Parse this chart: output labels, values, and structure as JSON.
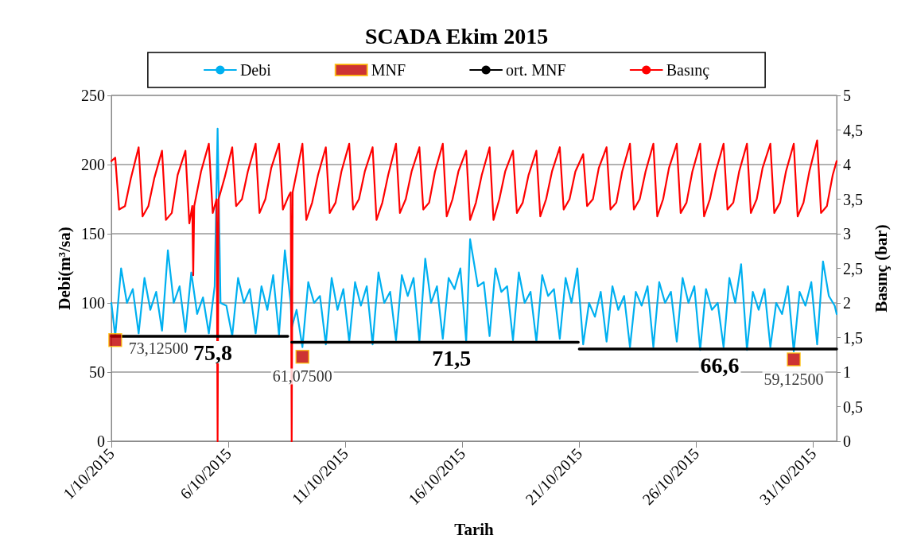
{
  "chart_data": {
    "type": "line",
    "title": "SCADA Ekim 2015",
    "xlabel": "Tarih",
    "ylabel": "Debi(m³/sa)",
    "y2label": "Basınç (bar)",
    "xlim": [
      "2015-10-01",
      "2015-11-01"
    ],
    "xticks": [
      {
        "value": "2015-10-01",
        "label": "1/10/2015"
      },
      {
        "value": "2015-10-06",
        "label": "6/10/2015"
      },
      {
        "value": "2015-10-11",
        "label": "11/10/2015"
      },
      {
        "value": "2015-10-16",
        "label": "16/10/2015"
      },
      {
        "value": "2015-10-21",
        "label": "21/10/2015"
      },
      {
        "value": "2015-10-26",
        "label": "26/10/2015"
      },
      {
        "value": "2015-10-31",
        "label": "31/10/2015"
      }
    ],
    "ylim": [
      0,
      250
    ],
    "yticks": [
      0,
      50,
      100,
      150,
      200,
      250
    ],
    "y2lim": [
      0,
      5
    ],
    "y2ticks": [
      0,
      {
        "value": 0.5,
        "label": "0,5"
      },
      1,
      {
        "value": 1.5,
        "label": "1,5"
      },
      2,
      {
        "value": 2.5,
        "label": "2,5"
      },
      3,
      {
        "value": 3.5,
        "label": "3,5"
      },
      4,
      {
        "value": 4.5,
        "label": "4,5"
      },
      5
    ],
    "grid": "y",
    "legend": "top",
    "marker": "none",
    "line_style": "solid",
    "series": [
      {
        "name": "Debi",
        "color": "#00b0f0",
        "x": [
          "2015-10-01T00:00",
          "2015-10-01T04:00",
          "2015-10-01T10:00",
          "2015-10-01T16:00",
          "2015-10-01T22:00",
          "2015-10-02T04:00",
          "2015-10-02T10:00",
          "2015-10-02T16:00",
          "2015-10-02T22:00",
          "2015-10-03T04:00",
          "2015-10-03T10:00",
          "2015-10-03T16:00",
          "2015-10-03T22:00",
          "2015-10-04T04:00",
          "2015-10-04T10:00",
          "2015-10-04T16:00",
          "2015-10-04T22:00",
          "2015-10-05T04:00",
          "2015-10-05T10:00",
          "2015-10-05T13:00",
          "2015-10-05T16:00",
          "2015-10-05T22:00",
          "2015-10-06T04:00",
          "2015-10-06T10:00",
          "2015-10-06T16:00",
          "2015-10-06T22:00",
          "2015-10-07T04:00",
          "2015-10-07T10:00",
          "2015-10-07T16:00",
          "2015-10-07T22:00",
          "2015-10-08T04:00",
          "2015-10-08T10:00",
          "2015-10-08T16:00",
          "2015-10-08T17:00",
          "2015-10-08T22:00",
          "2015-10-09T04:00",
          "2015-10-09T10:00",
          "2015-10-09T16:00",
          "2015-10-09T22:00",
          "2015-10-10T04:00",
          "2015-10-10T10:00",
          "2015-10-10T16:00",
          "2015-10-10T22:00",
          "2015-10-11T04:00",
          "2015-10-11T10:00",
          "2015-10-11T16:00",
          "2015-10-11T22:00",
          "2015-10-12T04:00",
          "2015-10-12T10:00",
          "2015-10-12T16:00",
          "2015-10-12T22:00",
          "2015-10-13T04:00",
          "2015-10-13T10:00",
          "2015-10-13T16:00",
          "2015-10-13T22:00",
          "2015-10-14T04:00",
          "2015-10-14T10:00",
          "2015-10-14T16:00",
          "2015-10-14T22:00",
          "2015-10-15T04:00",
          "2015-10-15T10:00",
          "2015-10-15T16:00",
          "2015-10-15T22:00",
          "2015-10-16T04:00",
          "2015-10-16T08:00",
          "2015-10-16T16:00",
          "2015-10-16T22:00",
          "2015-10-17T04:00",
          "2015-10-17T10:00",
          "2015-10-17T16:00",
          "2015-10-17T22:00",
          "2015-10-18T04:00",
          "2015-10-18T10:00",
          "2015-10-18T16:00",
          "2015-10-18T22:00",
          "2015-10-19T04:00",
          "2015-10-19T10:00",
          "2015-10-19T16:00",
          "2015-10-19T22:00",
          "2015-10-20T04:00",
          "2015-10-20T10:00",
          "2015-10-20T16:00",
          "2015-10-20T22:00",
          "2015-10-21T04:00",
          "2015-10-21T10:00",
          "2015-10-21T16:00",
          "2015-10-21T22:00",
          "2015-10-22T04:00",
          "2015-10-22T10:00",
          "2015-10-22T16:00",
          "2015-10-22T22:00",
          "2015-10-23T04:00",
          "2015-10-23T10:00",
          "2015-10-23T16:00",
          "2015-10-23T22:00",
          "2015-10-24T04:00",
          "2015-10-24T10:00",
          "2015-10-24T16:00",
          "2015-10-24T22:00",
          "2015-10-25T04:00",
          "2015-10-25T10:00",
          "2015-10-25T16:00",
          "2015-10-25T22:00",
          "2015-10-26T04:00",
          "2015-10-26T10:00",
          "2015-10-26T16:00",
          "2015-10-26T22:00",
          "2015-10-27T04:00",
          "2015-10-27T10:00",
          "2015-10-27T16:00",
          "2015-10-27T22:00",
          "2015-10-28T04:00",
          "2015-10-28T10:00",
          "2015-10-28T16:00",
          "2015-10-28T22:00",
          "2015-10-29T04:00",
          "2015-10-29T10:00",
          "2015-10-29T16:00",
          "2015-10-29T22:00",
          "2015-10-30T04:00",
          "2015-10-30T10:00",
          "2015-10-30T16:00",
          "2015-10-30T22:00",
          "2015-10-31T04:00",
          "2015-10-31T10:00",
          "2015-10-31T16:00",
          "2015-10-31T22:00",
          "2015-11-01T00:00"
        ],
        "values": [
          100,
          76,
          125,
          100,
          110,
          78,
          118,
          95,
          108,
          80,
          138,
          100,
          112,
          79,
          122,
          92,
          104,
          78,
          112,
          226,
          100,
          98,
          76,
          118,
          100,
          110,
          78,
          112,
          95,
          120,
          77,
          138,
          100,
          82,
          95,
          68,
          115,
          100,
          105,
          70,
          118,
          95,
          110,
          72,
          115,
          98,
          112,
          70,
          122,
          100,
          108,
          73,
          120,
          105,
          118,
          72,
          132,
          100,
          112,
          74,
          118,
          110,
          125,
          72,
          146,
          112,
          115,
          76,
          125,
          108,
          112,
          73,
          122,
          100,
          108,
          72,
          120,
          105,
          110,
          74,
          118,
          100,
          125,
          70,
          100,
          90,
          108,
          72,
          112,
          95,
          105,
          68,
          108,
          98,
          112,
          68,
          115,
          100,
          108,
          72,
          118,
          100,
          112,
          66,
          110,
          95,
          100,
          68,
          118,
          100,
          128,
          66,
          108,
          95,
          110,
          68,
          100,
          92,
          112,
          65,
          108,
          98,
          115,
          70,
          130,
          105,
          98,
          92
        ]
      },
      {
        "name": "MNF",
        "type": "scatter",
        "marker": "square",
        "color": "#c00000",
        "x": [
          "2015-10-01T04:00",
          "2015-10-09T04:00",
          "2015-10-30T04:00"
        ],
        "values": [
          73.125,
          61.075,
          59.125
        ],
        "value_labels": [
          "73,12500",
          "61,07500",
          "59,12500"
        ]
      },
      {
        "name": "ort. MNF",
        "type": "line",
        "color": "#000000",
        "x": [
          "2015-10-01T00:00",
          "2015-10-05T08:00",
          "2015-10-08T13:00",
          "2015-10-08T15:00",
          "2015-10-08T17:00",
          "2015-10-15T13:00",
          "2015-10-20T23:00",
          "2015-10-20T23:30",
          "2015-10-21T00:00",
          "2015-10-27T00:00",
          "2015-11-01T00:00"
        ],
        "values": [
          75.8,
          75.8,
          75.8,
          null,
          71.5,
          71.5,
          71.5,
          null,
          66.6,
          66.6,
          66.6
        ],
        "value_labels": [
          null,
          "75,8",
          null,
          null,
          null,
          "71,5",
          null,
          null,
          null,
          "66,6",
          null
        ]
      },
      {
        "name": "Basınç",
        "axis": "y2",
        "color": "#ff0000",
        "x": [
          "2015-10-01T00:00",
          "2015-10-01T04:00",
          "2015-10-01T08:00",
          "2015-10-01T14:00",
          "2015-10-01T20:00",
          "2015-10-02T04:00",
          "2015-10-02T08:00",
          "2015-10-02T14:00",
          "2015-10-02T20:00",
          "2015-10-03T04:00",
          "2015-10-03T08:00",
          "2015-10-03T14:00",
          "2015-10-03T20:00",
          "2015-10-04T04:00",
          "2015-10-04T08:00",
          "2015-10-04T11:00",
          "2015-10-04T12:00",
          "2015-10-04T13:00",
          "2015-10-04T20:00",
          "2015-10-05T04:00",
          "2015-10-05T08:00",
          "2015-10-05T12:00",
          "2015-10-05T13:00",
          "2015-10-05T14:00",
          "2015-10-05T20:00",
          "2015-10-06T04:00",
          "2015-10-06T08:00",
          "2015-10-06T14:00",
          "2015-10-06T20:00",
          "2015-10-07T04:00",
          "2015-10-07T08:00",
          "2015-10-07T14:00",
          "2015-10-07T20:00",
          "2015-10-08T04:00",
          "2015-10-08T08:00",
          "2015-10-08T14:00",
          "2015-10-08T16:00",
          "2015-10-08T17:00",
          "2015-10-08T18:00",
          "2015-10-09T04:00",
          "2015-10-09T08:00",
          "2015-10-09T14:00",
          "2015-10-09T20:00",
          "2015-10-10T04:00",
          "2015-10-10T08:00",
          "2015-10-10T14:00",
          "2015-10-10T20:00",
          "2015-10-11T04:00",
          "2015-10-11T08:00",
          "2015-10-11T14:00",
          "2015-10-11T20:00",
          "2015-10-12T04:00",
          "2015-10-12T08:00",
          "2015-10-12T14:00",
          "2015-10-12T20:00",
          "2015-10-13T04:00",
          "2015-10-13T08:00",
          "2015-10-13T14:00",
          "2015-10-13T20:00",
          "2015-10-14T04:00",
          "2015-10-14T08:00",
          "2015-10-14T14:00",
          "2015-10-14T20:00",
          "2015-10-15T04:00",
          "2015-10-15T08:00",
          "2015-10-15T14:00",
          "2015-10-15T20:00",
          "2015-10-16T04:00",
          "2015-10-16T08:00",
          "2015-10-16T14:00",
          "2015-10-16T20:00",
          "2015-10-17T04:00",
          "2015-10-17T08:00",
          "2015-10-17T14:00",
          "2015-10-17T20:00",
          "2015-10-18T04:00",
          "2015-10-18T08:00",
          "2015-10-18T14:00",
          "2015-10-18T20:00",
          "2015-10-19T04:00",
          "2015-10-19T08:00",
          "2015-10-19T14:00",
          "2015-10-19T20:00",
          "2015-10-20T04:00",
          "2015-10-20T08:00",
          "2015-10-20T14:00",
          "2015-10-20T20:00",
          "2015-10-21T04:00",
          "2015-10-21T08:00",
          "2015-10-21T14:00",
          "2015-10-21T20:00",
          "2015-10-22T04:00",
          "2015-10-22T08:00",
          "2015-10-22T14:00",
          "2015-10-22T20:00",
          "2015-10-23T04:00",
          "2015-10-23T08:00",
          "2015-10-23T14:00",
          "2015-10-23T20:00",
          "2015-10-24T04:00",
          "2015-10-24T08:00",
          "2015-10-24T14:00",
          "2015-10-24T20:00",
          "2015-10-25T04:00",
          "2015-10-25T08:00",
          "2015-10-25T14:00",
          "2015-10-25T20:00",
          "2015-10-26T04:00",
          "2015-10-26T08:00",
          "2015-10-26T14:00",
          "2015-10-26T20:00",
          "2015-10-27T04:00",
          "2015-10-27T08:00",
          "2015-10-27T14:00",
          "2015-10-27T20:00",
          "2015-10-28T04:00",
          "2015-10-28T08:00",
          "2015-10-28T14:00",
          "2015-10-28T20:00",
          "2015-10-29T04:00",
          "2015-10-29T08:00",
          "2015-10-29T14:00",
          "2015-10-29T20:00",
          "2015-10-30T04:00",
          "2015-10-30T08:00",
          "2015-10-30T14:00",
          "2015-10-30T20:00",
          "2015-10-31T04:00",
          "2015-10-31T08:00",
          "2015-10-31T14:00",
          "2015-10-31T20:00",
          "2015-11-01T00:00"
        ],
        "values": [
          4.05,
          4.1,
          3.35,
          3.4,
          3.8,
          4.25,
          3.25,
          3.4,
          3.8,
          4.2,
          3.2,
          3.3,
          3.85,
          4.2,
          3.15,
          3.4,
          2.4,
          3.4,
          3.9,
          4.3,
          3.3,
          3.5,
          0,
          3.5,
          3.8,
          4.25,
          3.4,
          3.5,
          3.9,
          4.3,
          3.3,
          3.5,
          3.95,
          4.3,
          3.35,
          3.55,
          3.6,
          0,
          3.6,
          4.3,
          3.2,
          3.45,
          3.85,
          4.25,
          3.3,
          3.45,
          3.9,
          4.3,
          3.35,
          3.5,
          3.9,
          4.25,
          3.2,
          3.45,
          3.85,
          4.3,
          3.3,
          3.5,
          3.9,
          4.25,
          3.35,
          3.45,
          3.9,
          4.3,
          3.25,
          3.5,
          3.9,
          4.2,
          3.2,
          3.45,
          3.85,
          4.25,
          3.2,
          3.5,
          3.9,
          4.2,
          3.3,
          3.45,
          3.85,
          4.2,
          3.25,
          3.5,
          3.9,
          4.25,
          3.35,
          3.5,
          3.9,
          4.15,
          3.4,
          3.5,
          3.95,
          4.25,
          3.35,
          3.45,
          3.9,
          4.3,
          3.35,
          3.5,
          3.9,
          4.3,
          3.25,
          3.5,
          3.95,
          4.3,
          3.3,
          3.45,
          3.9,
          4.3,
          3.25,
          3.5,
          3.9,
          4.3,
          3.35,
          3.45,
          3.9,
          4.3,
          3.3,
          3.5,
          3.95,
          4.3,
          3.3,
          3.45,
          3.9,
          4.3,
          3.25,
          3.45,
          3.9,
          4.35,
          3.3,
          3.4,
          3.85,
          4.05
        ]
      }
    ]
  }
}
